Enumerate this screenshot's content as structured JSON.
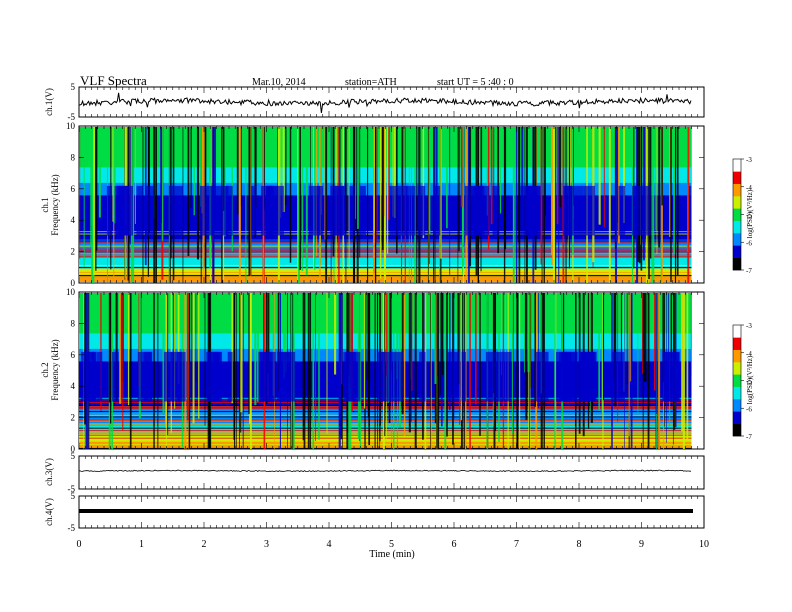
{
  "header": {
    "title": "VLF Spectra",
    "date": "Mar.10, 2014",
    "station": "station=ATH",
    "start": "start  UT  =   5  :40 : 0"
  },
  "chart_data": [
    {
      "type": "line",
      "panel": "ch1-waveform",
      "ylabel": "ch.1(V)",
      "ylim": [
        -5,
        5
      ],
      "yticks": [
        "5",
        "-5"
      ],
      "approx_level_V": 0.0,
      "color": "#000000"
    },
    {
      "type": "heatmap",
      "panel": "ch1-spectrogram",
      "ylabel": [
        "ch.1",
        "Frequency (kHz)"
      ],
      "ylim": [
        0,
        10
      ],
      "yticks": [
        "0",
        "2",
        "4",
        "6",
        "8",
        "10"
      ],
      "colorbar": {
        "label": "log(PSD)(V²/Hz)",
        "ticks": [
          "-3",
          "-4",
          "-5",
          "-6",
          "-7"
        ],
        "range": [
          -7,
          -3
        ],
        "colors": [
          "#000000",
          "#0000cc",
          "#0088ff",
          "#00e8e8",
          "#00dd44",
          "#ccee00",
          "#ff9900",
          "#ee0000",
          "#ffffff"
        ]
      }
    },
    {
      "type": "heatmap",
      "panel": "ch2-spectrogram",
      "ylabel": [
        "ch.2",
        "Frequency (kHz)"
      ],
      "ylim": [
        0,
        10
      ],
      "yticks": [
        "0",
        "2",
        "4",
        "6",
        "8",
        "10"
      ],
      "colorbar": {
        "label": "log(PSD)(V²/Hz)",
        "ticks": [
          "-3",
          "-4",
          "-5",
          "-6",
          "-7"
        ],
        "range": [
          -7,
          -3
        ],
        "colors": [
          "#000000",
          "#0000cc",
          "#0088ff",
          "#00e8e8",
          "#00dd44",
          "#ccee00",
          "#ff9900",
          "#ee0000",
          "#ffffff"
        ]
      }
    },
    {
      "type": "line",
      "panel": "ch3-waveform",
      "ylabel": "ch.3(V)",
      "ylim": [
        -5,
        5
      ],
      "yticks": [
        "5",
        "-5"
      ],
      "approx_level_V": 0.5,
      "color": "#000000"
    },
    {
      "type": "line",
      "panel": "ch4-waveform",
      "ylabel": "ch.4(V)",
      "ylim": [
        -5,
        5
      ],
      "yticks": [
        "5",
        "-5"
      ],
      "approx_level_V": 0.0,
      "color": "#000000"
    }
  ],
  "x_axis": {
    "label": "Time  (min)",
    "xlim": [
      0,
      10
    ],
    "ticks": [
      "0",
      "1",
      "2",
      "3",
      "4",
      "5",
      "6",
      "7",
      "8",
      "9",
      "10"
    ],
    "data_end_min": 9.8
  }
}
